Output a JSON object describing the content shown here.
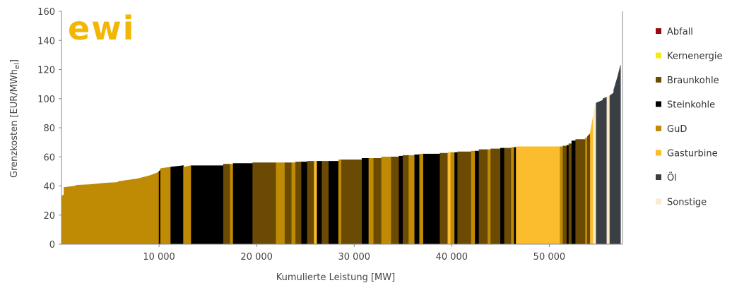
{
  "logo": {
    "text": "ewi",
    "color": "#F2B705"
  },
  "chart_data": {
    "type": "bar",
    "title": "",
    "xlabel": "Kumulierte Leistung [MW]",
    "ylabel": "Grenzkosten [EUR/MWh",
    "ylabel_sub": "el",
    "ylabel_close": "]",
    "xlim": [
      0,
      57500
    ],
    "ylim": [
      0,
      160
    ],
    "xticks": [
      10000,
      20000,
      30000,
      40000,
      50000
    ],
    "xtick_labels": [
      "10 000",
      "20 000",
      "30 000",
      "40 000",
      "50 000"
    ],
    "yticks": [
      0,
      20,
      40,
      60,
      80,
      100,
      120,
      140,
      160
    ],
    "ytick_labels": [
      "0",
      "20",
      "40",
      "60",
      "80",
      "100",
      "120",
      "140",
      "160"
    ],
    "grid": false,
    "legend_position": "right",
    "legend": [
      {
        "key": "abfall",
        "label": "Abfall",
        "color": "#9B0A0A"
      },
      {
        "key": "kern",
        "label": "Kernenergie",
        "color": "#F5EB10"
      },
      {
        "key": "braun",
        "label": "Braunkohle",
        "color": "#6B4A04"
      },
      {
        "key": "stein",
        "label": "Steinkohle",
        "color": "#000000"
      },
      {
        "key": "gud",
        "label": "GuD",
        "color": "#BF8A04"
      },
      {
        "key": "gas",
        "label": "Gasturbine",
        "color": "#FBBC2E"
      },
      {
        "key": "oel",
        "label": "Öl",
        "color": "#3A3F45"
      },
      {
        "key": "sonst",
        "label": "Sonstige",
        "color": "#FBEBCB"
      }
    ],
    "segments": [
      {
        "x0": 0,
        "x1": 250,
        "y0": 33,
        "y1": 34,
        "type": "gud"
      },
      {
        "x0": 250,
        "x1": 1500,
        "y0": 39,
        "y1": 40,
        "type": "gud"
      },
      {
        "x0": 1500,
        "x1": 3000,
        "y0": 40.5,
        "y1": 41,
        "type": "gud"
      },
      {
        "x0": 3000,
        "x1": 4500,
        "y0": 41,
        "y1": 42,
        "type": "gud"
      },
      {
        "x0": 4500,
        "x1": 5800,
        "y0": 42,
        "y1": 42.5,
        "type": "gud"
      },
      {
        "x0": 5800,
        "x1": 6800,
        "y0": 43,
        "y1": 44,
        "type": "gud"
      },
      {
        "x0": 6800,
        "x1": 7800,
        "y0": 44,
        "y1": 45,
        "type": "gud"
      },
      {
        "x0": 7800,
        "x1": 9000,
        "y0": 45,
        "y1": 47,
        "type": "gud"
      },
      {
        "x0": 9000,
        "x1": 9800,
        "y0": 47,
        "y1": 49,
        "type": "gud"
      },
      {
        "x0": 9800,
        "x1": 10000,
        "y0": 49,
        "y1": 50,
        "type": "gud"
      },
      {
        "x0": 10000,
        "x1": 10150,
        "y0": 50,
        "y1": 51,
        "type": "stein"
      },
      {
        "x0": 10150,
        "x1": 11200,
        "y0": 52,
        "y1": 53,
        "type": "gud"
      },
      {
        "x0": 11200,
        "x1": 12500,
        "y0": 53,
        "y1": 54,
        "type": "stein"
      },
      {
        "x0": 12500,
        "x1": 13300,
        "y0": 53,
        "y1": 54,
        "type": "gud"
      },
      {
        "x0": 13300,
        "x1": 16600,
        "y0": 54,
        "y1": 54,
        "type": "stein"
      },
      {
        "x0": 16600,
        "x1": 17300,
        "y0": 55,
        "y1": 55,
        "type": "braun"
      },
      {
        "x0": 17300,
        "x1": 17600,
        "y0": 55,
        "y1": 55,
        "type": "gud"
      },
      {
        "x0": 17600,
        "x1": 19600,
        "y0": 55.5,
        "y1": 55.5,
        "type": "stein"
      },
      {
        "x0": 19600,
        "x1": 22000,
        "y0": 56,
        "y1": 56,
        "type": "braun"
      },
      {
        "x0": 22000,
        "x1": 22900,
        "y0": 56,
        "y1": 56,
        "type": "gud"
      },
      {
        "x0": 22900,
        "x1": 23600,
        "y0": 56,
        "y1": 56,
        "type": "braun"
      },
      {
        "x0": 23600,
        "x1": 24000,
        "y0": 56,
        "y1": 56,
        "type": "gud"
      },
      {
        "x0": 24000,
        "x1": 24600,
        "y0": 56.5,
        "y1": 56.5,
        "type": "braun"
      },
      {
        "x0": 24600,
        "x1": 25200,
        "y0": 56.5,
        "y1": 56.5,
        "type": "stein"
      },
      {
        "x0": 25200,
        "x1": 25900,
        "y0": 57,
        "y1": 57,
        "type": "braun"
      },
      {
        "x0": 25900,
        "x1": 26200,
        "y0": 57,
        "y1": 57,
        "type": "gas"
      },
      {
        "x0": 26200,
        "x1": 26700,
        "y0": 57,
        "y1": 57,
        "type": "stein"
      },
      {
        "x0": 26700,
        "x1": 27400,
        "y0": 57,
        "y1": 57,
        "type": "braun"
      },
      {
        "x0": 27400,
        "x1": 28400,
        "y0": 57,
        "y1": 57,
        "type": "stein"
      },
      {
        "x0": 28400,
        "x1": 28700,
        "y0": 58,
        "y1": 58,
        "type": "gud"
      },
      {
        "x0": 28700,
        "x1": 30800,
        "y0": 58,
        "y1": 58,
        "type": "braun"
      },
      {
        "x0": 30800,
        "x1": 31500,
        "y0": 59,
        "y1": 59,
        "type": "stein"
      },
      {
        "x0": 31500,
        "x1": 32000,
        "y0": 59,
        "y1": 59,
        "type": "gud"
      },
      {
        "x0": 32000,
        "x1": 32800,
        "y0": 59,
        "y1": 59,
        "type": "braun"
      },
      {
        "x0": 32800,
        "x1": 33800,
        "y0": 60,
        "y1": 60,
        "type": "gud"
      },
      {
        "x0": 33800,
        "x1": 34600,
        "y0": 60,
        "y1": 60,
        "type": "braun"
      },
      {
        "x0": 34600,
        "x1": 35000,
        "y0": 60.5,
        "y1": 60.5,
        "type": "stein"
      },
      {
        "x0": 35000,
        "x1": 35600,
        "y0": 61,
        "y1": 61,
        "type": "braun"
      },
      {
        "x0": 35600,
        "x1": 36200,
        "y0": 61,
        "y1": 61,
        "type": "gud"
      },
      {
        "x0": 36200,
        "x1": 36700,
        "y0": 61.5,
        "y1": 61.5,
        "type": "stein"
      },
      {
        "x0": 36700,
        "x1": 37100,
        "y0": 62,
        "y1": 62,
        "type": "gud"
      },
      {
        "x0": 37100,
        "x1": 38800,
        "y0": 62,
        "y1": 62,
        "type": "stein"
      },
      {
        "x0": 38800,
        "x1": 39600,
        "y0": 62.5,
        "y1": 62.5,
        "type": "braun"
      },
      {
        "x0": 39600,
        "x1": 39900,
        "y0": 63,
        "y1": 63,
        "type": "gas"
      },
      {
        "x0": 39900,
        "x1": 40300,
        "y0": 63,
        "y1": 63,
        "type": "gud"
      },
      {
        "x0": 40300,
        "x1": 40600,
        "y0": 63,
        "y1": 63,
        "type": "stein"
      },
      {
        "x0": 40600,
        "x1": 42000,
        "y0": 63.5,
        "y1": 63.5,
        "type": "braun"
      },
      {
        "x0": 42000,
        "x1": 42400,
        "y0": 64,
        "y1": 64,
        "type": "gud"
      },
      {
        "x0": 42400,
        "x1": 42800,
        "y0": 64,
        "y1": 64,
        "type": "stein"
      },
      {
        "x0": 42800,
        "x1": 43700,
        "y0": 65,
        "y1": 65,
        "type": "braun"
      },
      {
        "x0": 43700,
        "x1": 44000,
        "y0": 65,
        "y1": 65,
        "type": "gud"
      },
      {
        "x0": 44000,
        "x1": 45000,
        "y0": 65.5,
        "y1": 65.5,
        "type": "braun"
      },
      {
        "x0": 45000,
        "x1": 45400,
        "y0": 66,
        "y1": 66,
        "type": "stein"
      },
      {
        "x0": 45400,
        "x1": 46100,
        "y0": 66,
        "y1": 66,
        "type": "braun"
      },
      {
        "x0": 46100,
        "x1": 46400,
        "y0": 66.5,
        "y1": 66.5,
        "type": "gud"
      },
      {
        "x0": 46400,
        "x1": 46600,
        "y0": 66.5,
        "y1": 66.5,
        "type": "stein"
      },
      {
        "x0": 46600,
        "x1": 51100,
        "y0": 67,
        "y1": 67,
        "type": "gas"
      },
      {
        "x0": 51100,
        "x1": 51400,
        "y0": 67,
        "y1": 67,
        "type": "gud"
      },
      {
        "x0": 51400,
        "x1": 51800,
        "y0": 67.5,
        "y1": 67.5,
        "type": "braun"
      },
      {
        "x0": 51800,
        "x1": 52000,
        "y0": 68,
        "y1": 68,
        "type": "stein"
      },
      {
        "x0": 52000,
        "x1": 52300,
        "y0": 69,
        "y1": 69,
        "type": "braun"
      },
      {
        "x0": 52300,
        "x1": 52700,
        "y0": 71,
        "y1": 71,
        "type": "stein"
      },
      {
        "x0": 52700,
        "x1": 53700,
        "y0": 72,
        "y1": 72,
        "type": "braun"
      },
      {
        "x0": 53700,
        "x1": 53900,
        "y0": 73,
        "y1": 73,
        "type": "gud"
      },
      {
        "x0": 53900,
        "x1": 54200,
        "y0": 74,
        "y1": 76,
        "type": "braun"
      },
      {
        "x0": 54200,
        "x1": 54500,
        "y0": 77,
        "y1": 88,
        "type": "gas"
      },
      {
        "x0": 54500,
        "x1": 54800,
        "y0": 90,
        "y1": 97,
        "type": "sonst"
      },
      {
        "x0": 54800,
        "x1": 55500,
        "y0": 97,
        "y1": 99,
        "type": "oel"
      },
      {
        "x0": 55500,
        "x1": 55900,
        "y0": 100,
        "y1": 101,
        "type": "oel"
      },
      {
        "x0": 55900,
        "x1": 56200,
        "y0": 101,
        "y1": 102,
        "type": "sonst"
      },
      {
        "x0": 56200,
        "x1": 56600,
        "y0": 102,
        "y1": 104,
        "type": "oel"
      },
      {
        "x0": 56600,
        "x1": 57000,
        "y0": 106,
        "y1": 115,
        "type": "oel"
      },
      {
        "x0": 57000,
        "x1": 57300,
        "y0": 115,
        "y1": 123,
        "type": "oel"
      }
    ]
  }
}
